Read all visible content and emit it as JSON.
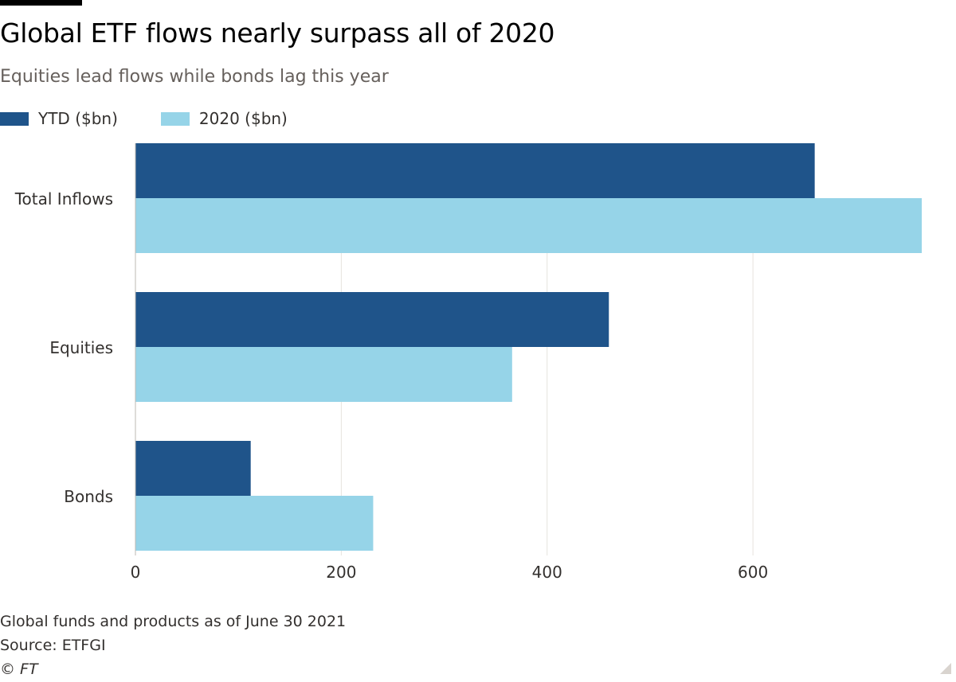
{
  "header": {
    "title": "Global ETF flows nearly surpass all of 2020",
    "subtitle": "Equities lead flows while bonds lag this year"
  },
  "footer": {
    "note": "Global funds and products as of June 30 2021",
    "source": "Source: ETFGI",
    "copyright": "© FT"
  },
  "colors": {
    "ytd": "#1f548a",
    "y2020": "#96d4e8",
    "grid": "#e6e2de",
    "text": "#33302e"
  },
  "chart_data": {
    "type": "bar",
    "orientation": "horizontal",
    "title": "Global ETF flows nearly surpass all of 2020",
    "subtitle": "Equities lead flows while bonds lag this year",
    "categories": [
      "Total Inflows",
      "Equities",
      "Bonds"
    ],
    "series": [
      {
        "name": "YTD ($bn)",
        "values": [
          660,
          460,
          112
        ]
      },
      {
        "name": "2020 ($bn)",
        "values": [
          764,
          366,
          231
        ]
      }
    ],
    "xlim": [
      0,
      764
    ],
    "xticks": [
      0,
      200,
      400,
      600
    ],
    "xlabel": "",
    "ylabel": "",
    "grid": true,
    "legend_position": "top-left"
  }
}
